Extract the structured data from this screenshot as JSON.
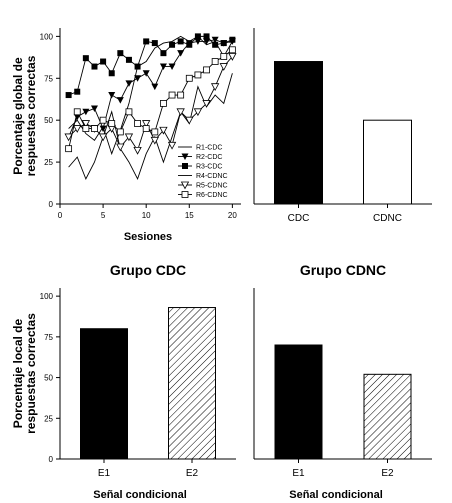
{
  "chart_data": [
    {
      "type": "line",
      "title": "",
      "xlabel": "Sesiones",
      "ylabel": "Porcentaje global de respuestas correctas",
      "xlim": [
        0,
        21
      ],
      "ylim": [
        0,
        105
      ],
      "xticks": [
        0,
        5,
        10,
        15,
        20
      ],
      "yticks": [
        0,
        25,
        50,
        75,
        100
      ],
      "legend_position": "lower-right",
      "x": [
        1,
        2,
        3,
        4,
        5,
        6,
        7,
        8,
        9,
        10,
        11,
        12,
        13,
        14,
        15,
        16,
        17,
        18,
        19,
        20
      ],
      "series": [
        {
          "name": "R1-CDC",
          "marker": "none",
          "values": [
            45,
            50,
            42,
            38,
            46,
            30,
            44,
            60,
            82,
            85,
            93,
            96,
            97,
            100,
            97,
            100,
            95,
            97,
            88,
            97
          ]
        },
        {
          "name": "R2-CDC",
          "marker": "triangle-down",
          "values": [
            40,
            52,
            55,
            57,
            45,
            65,
            62,
            72,
            75,
            78,
            70,
            82,
            82,
            90,
            96,
            97,
            97,
            98,
            96,
            97
          ]
        },
        {
          "name": "R3-CDC",
          "marker": "square-filled",
          "values": [
            65,
            67,
            87,
            82,
            85,
            78,
            90,
            86,
            82,
            97,
            96,
            90,
            95,
            97,
            95,
            100,
            100,
            95,
            96,
            98
          ]
        },
        {
          "name": "R4-CDNC",
          "marker": "none",
          "values": [
            22,
            28,
            15,
            25,
            40,
            55,
            33,
            25,
            15,
            30,
            40,
            25,
            40,
            55,
            48,
            70,
            58,
            65,
            60,
            78
          ]
        },
        {
          "name": "R5-CDNC",
          "marker": "triangle-down-open",
          "values": [
            40,
            45,
            48,
            45,
            40,
            45,
            34,
            40,
            32,
            48,
            38,
            44,
            35,
            55,
            50,
            55,
            60,
            70,
            82,
            88
          ]
        },
        {
          "name": "R6-CDNC",
          "marker": "square-open",
          "values": [
            33,
            55,
            45,
            45,
            50,
            48,
            43,
            55,
            48,
            45,
            43,
            60,
            65,
            65,
            75,
            77,
            80,
            85,
            88,
            92
          ]
        }
      ]
    },
    {
      "type": "bar",
      "title": "",
      "categories": [
        "CDC",
        "CDNC"
      ],
      "values": [
        85,
        50
      ],
      "ylim": [
        0,
        105
      ],
      "colors": [
        "#000000",
        "#ffffff"
      ]
    },
    {
      "type": "bar",
      "title": "Grupo CDC",
      "xlabel": "Señal condicional",
      "ylabel": "Porcentaje local de respuestas correctas",
      "categories": [
        "E1",
        "E2"
      ],
      "values": [
        80,
        93
      ],
      "ylim": [
        0,
        105
      ],
      "yticks": [
        0,
        25,
        50,
        75,
        100
      ],
      "fills": [
        "solid-black",
        "hatched"
      ]
    },
    {
      "type": "bar",
      "title": "Grupo CDNC",
      "xlabel": "Señal condicional",
      "categories": [
        "E1",
        "E2"
      ],
      "values": [
        70,
        52
      ],
      "ylim": [
        0,
        105
      ],
      "fills": [
        "solid-black",
        "hatched"
      ]
    }
  ]
}
